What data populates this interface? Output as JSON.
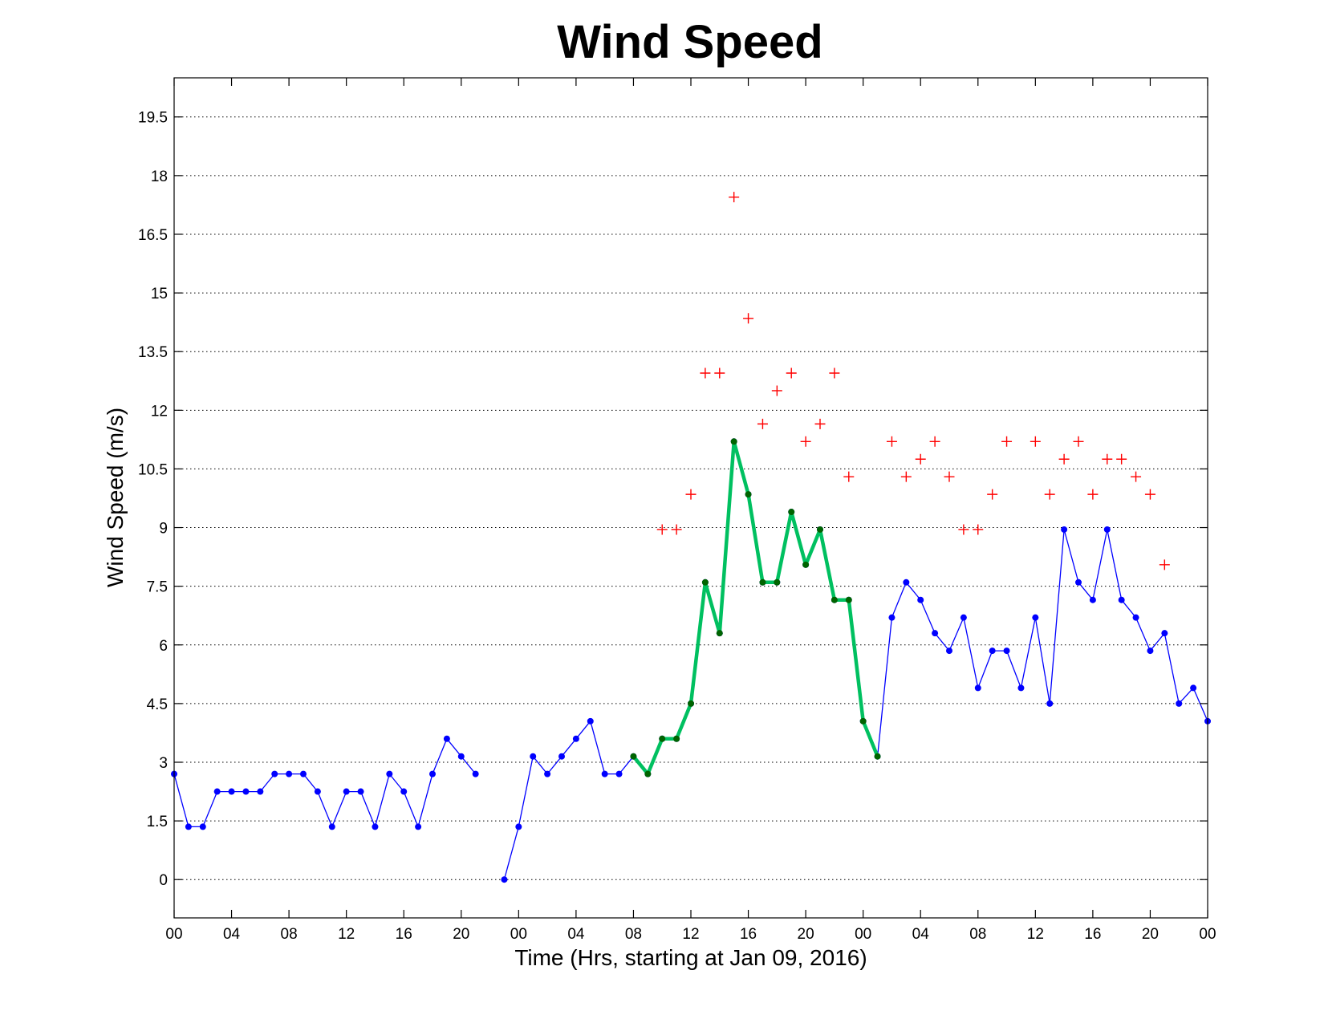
{
  "chart_data": {
    "type": "line",
    "title": "Wind Speed",
    "xlabel": "Time (Hrs, starting at Jan 09, 2016)",
    "ylabel": "Wind Speed (m/s)",
    "x_unit": "hours",
    "xlim": [
      0,
      72
    ],
    "ylim": [
      -0.98,
      20.5
    ],
    "yticks": [
      0,
      1.5,
      3,
      4.5,
      6,
      7.5,
      9,
      10.5,
      12,
      13.5,
      15,
      16.5,
      18,
      19.5
    ],
    "ytick_labels": [
      "0",
      "1.5",
      "3",
      "4.5",
      "6",
      "7.5",
      "9",
      "10.5",
      "12",
      "13.5",
      "15",
      "16.5",
      "18",
      "19.5"
    ],
    "xticks": [
      0,
      4,
      8,
      12,
      16,
      20,
      24,
      28,
      32,
      36,
      40,
      44,
      48,
      52,
      56,
      60,
      64,
      68,
      72
    ],
    "xtick_labels": [
      "00",
      "04",
      "08",
      "12",
      "16",
      "20",
      "00",
      "04",
      "08",
      "12",
      "16",
      "20",
      "00",
      "04",
      "08",
      "12",
      "16",
      "20",
      "00"
    ],
    "grid": "horizontal dotted",
    "colors": {
      "wind": "#0000ff",
      "highlight": "#00c060",
      "highlight_marker": "#006400",
      "gust": "#ff0000"
    },
    "series": [
      {
        "style": "blue line with dot markers",
        "segments": [
          {
            "x": [
              0,
              1,
              2,
              3,
              4,
              5,
              6,
              7,
              8,
              9,
              10,
              11,
              12,
              13,
              14,
              15,
              16,
              17,
              18,
              19,
              20,
              21
            ],
            "y": [
              2.7,
              1.35,
              1.35,
              2.25,
              2.25,
              2.25,
              2.25,
              2.7,
              2.7,
              2.7,
              2.25,
              1.35,
              2.25,
              2.25,
              1.35,
              2.7,
              2.25,
              1.35,
              2.7,
              3.6,
              3.15,
              2.7
            ]
          },
          {
            "x": [
              23,
              24,
              25,
              26,
              27,
              28,
              29,
              30,
              31,
              32,
              33,
              34,
              35,
              36,
              37,
              38,
              39,
              40,
              41,
              42,
              43,
              44,
              45,
              46,
              47,
              48,
              49,
              50,
              51,
              52,
              53,
              54,
              55,
              56,
              57,
              58,
              59,
              60,
              61,
              62,
              63,
              64,
              65,
              66,
              67,
              68,
              69,
              70,
              71,
              72
            ],
            "y": [
              0,
              1.35,
              3.15,
              2.7,
              3.15,
              3.6,
              4.05,
              2.7,
              2.7,
              3.15,
              2.7,
              3.6,
              3.6,
              4.5,
              7.6,
              6.3,
              11.2,
              9.85,
              7.6,
              7.6,
              9.4,
              8.05,
              8.95,
              7.15,
              7.15,
              4.05,
              3.15,
              6.7,
              7.6,
              7.15,
              6.3,
              5.85,
              6.7,
              4.9,
              5.85,
              5.85,
              4.9,
              6.7,
              4.5,
              8.95,
              7.6,
              7.15,
              8.95,
              7.15,
              6.7,
              5.85,
              6.3,
              4.5,
              4.9,
              4.05
            ]
          }
        ]
      },
      {
        "style": "thick green line with dark green dot markers",
        "x": [
          32,
          33,
          34,
          35,
          36,
          37,
          38,
          39,
          40,
          41,
          42,
          43,
          44,
          45,
          46,
          47,
          48,
          49
        ],
        "y": [
          3.15,
          2.7,
          3.6,
          3.6,
          4.5,
          7.6,
          6.3,
          11.2,
          9.85,
          7.6,
          7.6,
          9.4,
          8.05,
          8.95,
          7.15,
          7.15,
          4.05,
          3.15
        ]
      },
      {
        "style": "red plus markers",
        "x": [
          34,
          35,
          36,
          37,
          38,
          39,
          40,
          41,
          42,
          43,
          44,
          45,
          46,
          47,
          50,
          51,
          52,
          53,
          54,
          55,
          56,
          57,
          58,
          60,
          61,
          62,
          63,
          64,
          65,
          66,
          67,
          68,
          69
        ],
        "y": [
          8.95,
          8.95,
          9.85,
          12.95,
          12.95,
          17.45,
          14.35,
          11.65,
          12.5,
          12.95,
          11.2,
          11.65,
          12.95,
          10.3,
          11.2,
          10.3,
          10.75,
          11.2,
          10.3,
          8.95,
          8.95,
          9.85,
          11.2,
          11.2,
          9.85,
          10.75,
          11.2,
          9.85,
          10.75,
          10.75,
          10.3,
          9.85,
          8.05
        ]
      }
    ]
  }
}
